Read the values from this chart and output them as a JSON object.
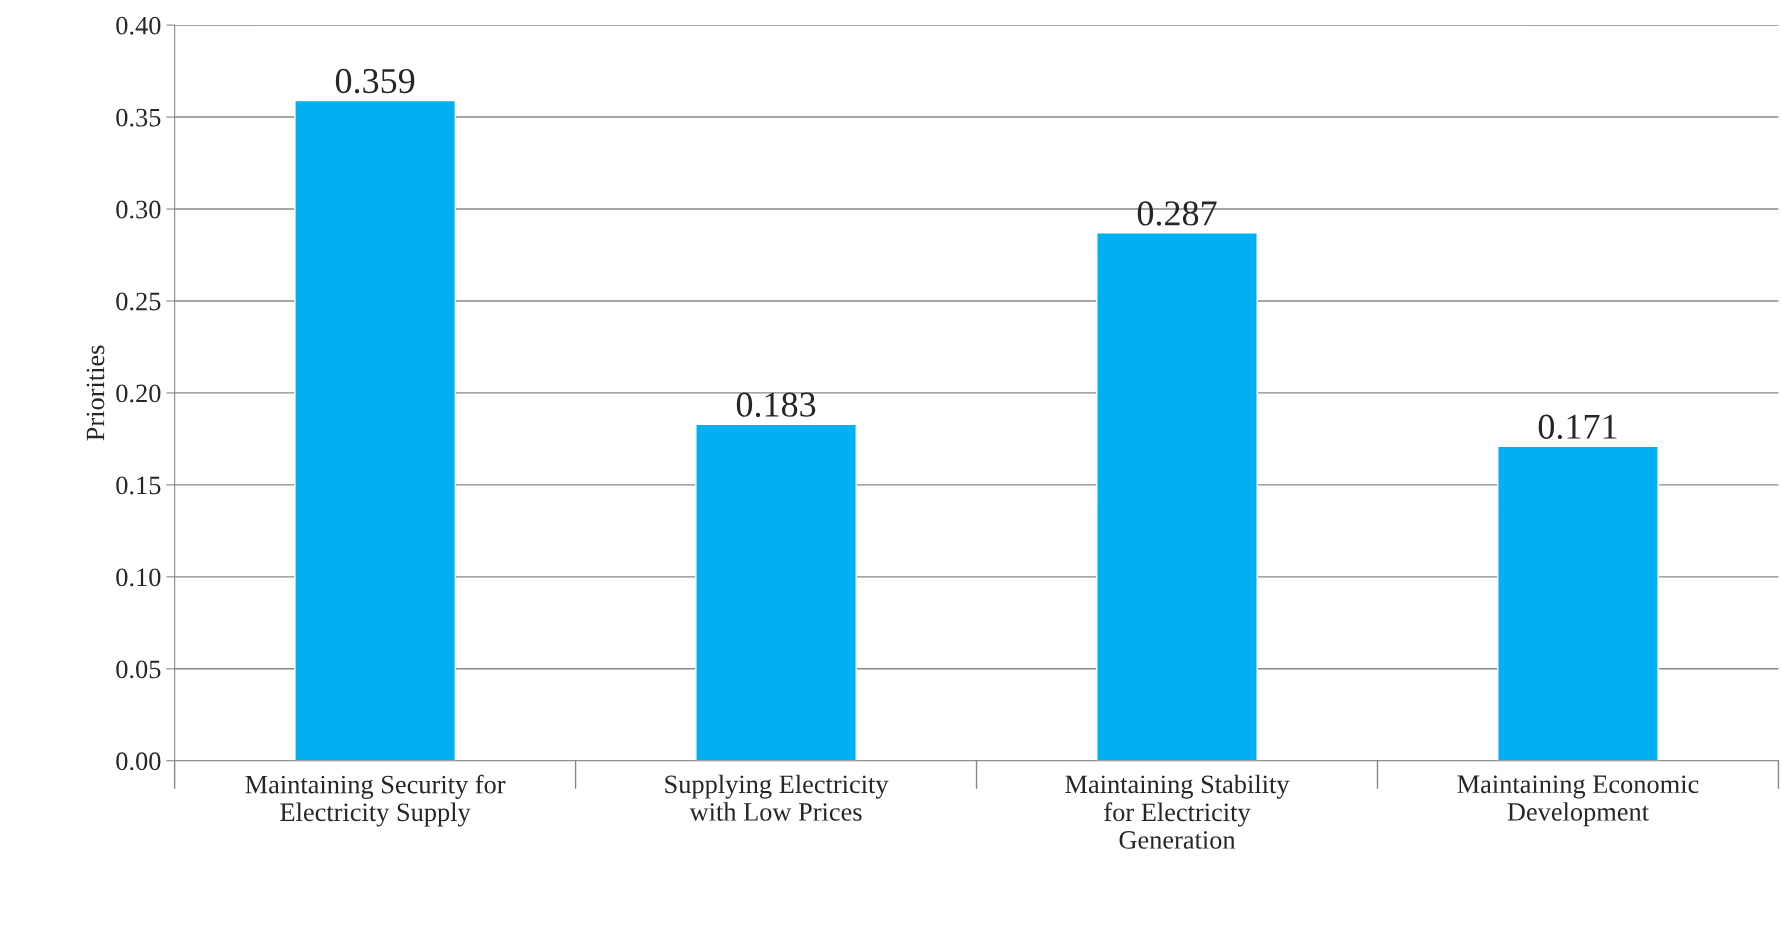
{
  "chart_data": {
    "type": "bar",
    "ylabel": "Priorities",
    "categories": [
      "Maintaining Security for Electricity Supply",
      "Supplying Electricity with Low Prices",
      "Maintaining Stability for Electricity Generation",
      "Maintaining Economic Development"
    ],
    "values": [
      0.359,
      0.183,
      0.287,
      0.171
    ],
    "color": "#00b0f0",
    "ylim": [
      0,
      0.4
    ],
    "yticks": [
      {
        "value": 0,
        "label": "0.00"
      },
      {
        "value": 0.05,
        "label": "0.05"
      },
      {
        "value": 0.1,
        "label": "0.10"
      },
      {
        "value": 0.15,
        "label": "0.15"
      },
      {
        "value": 0.2,
        "label": "0.20"
      },
      {
        "value": 0.25,
        "label": "0.25"
      },
      {
        "value": 0.3,
        "label": "0.30"
      },
      {
        "value": 0.35,
        "label": "0.35"
      },
      {
        "value": 0.4,
        "label": "0.40"
      }
    ],
    "grid": "y",
    "data_labels": true
  }
}
